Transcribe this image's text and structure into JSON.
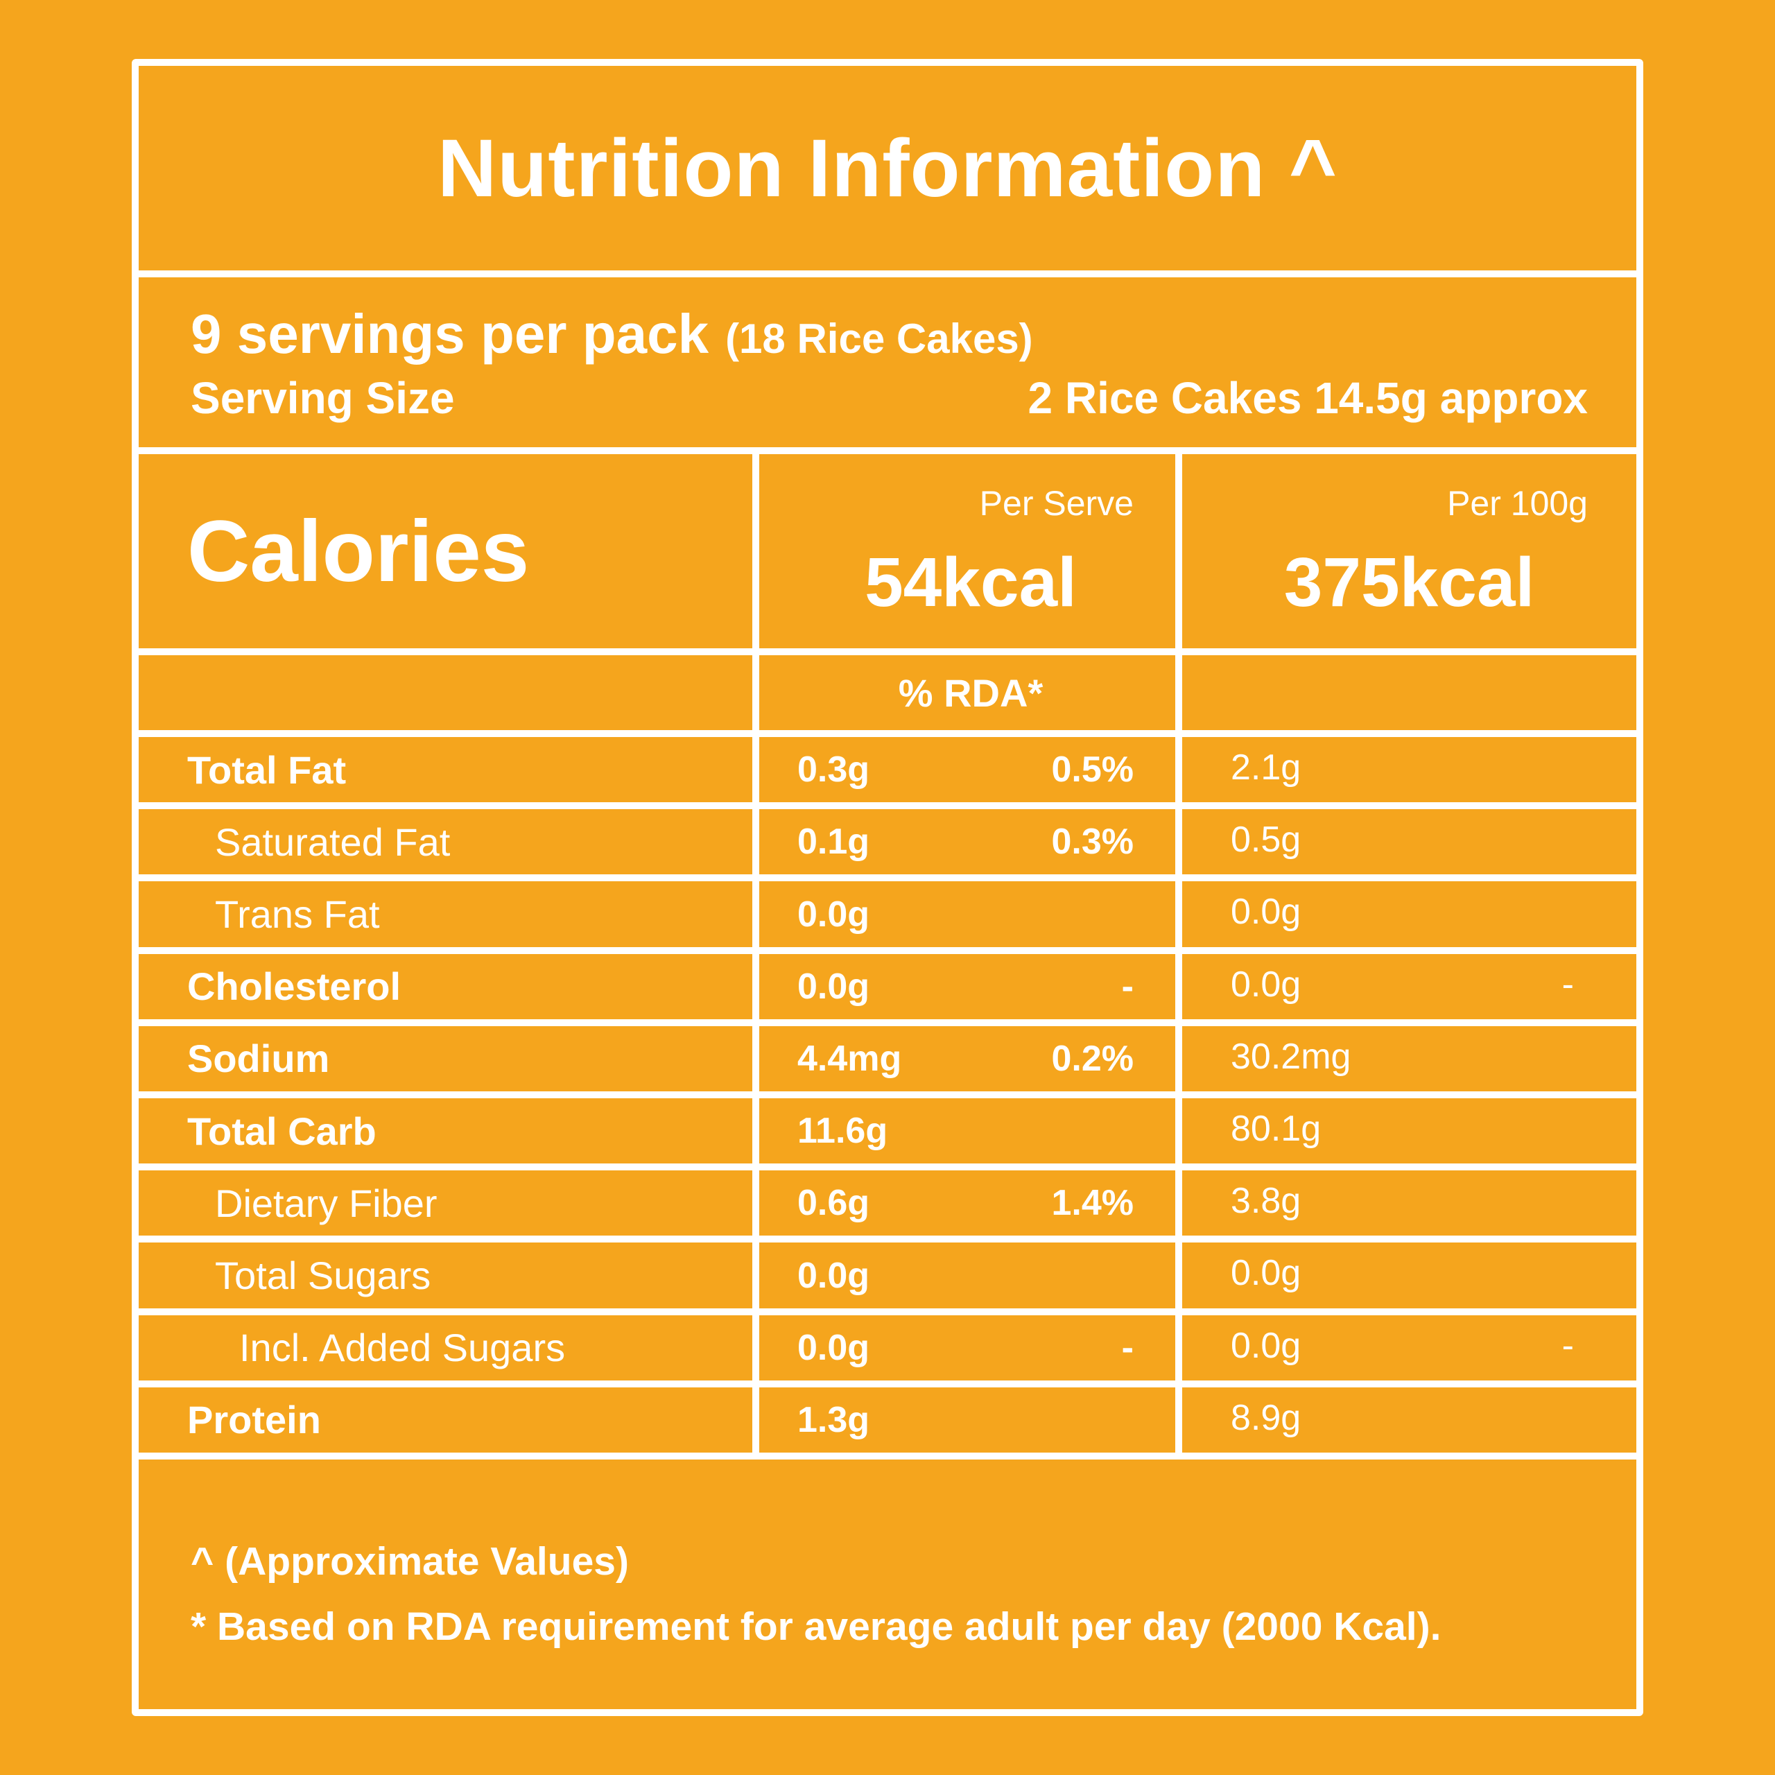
{
  "theme": {
    "background": "#F5A51D",
    "foreground": "#FFFFFF"
  },
  "label": {
    "title": "Nutrition Information ^",
    "servings": {
      "main": "9 servings per pack",
      "detail": "(18 Rice Cakes)",
      "serving_size_label": "Serving Size",
      "serving_size_value": "2 Rice Cakes 14.5g approx"
    },
    "columns": {
      "per_serve": "Per Serve",
      "per_100g": "Per 100g"
    },
    "calories": {
      "label": "Calories",
      "per_serve": "54kcal",
      "per_100g": "375kcal"
    },
    "rda_header": "% RDA*",
    "rows": [
      {
        "label": "Total Fat",
        "amount": "0.3g",
        "rda": "0.5%",
        "per_100g": "2.1g",
        "per_100g_extra": ""
      },
      {
        "label": "Saturated Fat",
        "amount": "0.1g",
        "rda": "0.3%",
        "per_100g": "0.5g",
        "per_100g_extra": ""
      },
      {
        "label": "Trans Fat",
        "amount": "0.0g",
        "rda": "",
        "per_100g": "0.0g",
        "per_100g_extra": ""
      },
      {
        "label": "Cholesterol",
        "amount": "0.0g",
        "rda": "-",
        "per_100g": "0.0g",
        "per_100g_extra": "-"
      },
      {
        "label": "Sodium",
        "amount": "4.4mg",
        "rda": "0.2%",
        "per_100g": "30.2mg",
        "per_100g_extra": ""
      },
      {
        "label": "Total Carb",
        "amount": "11.6g",
        "rda": "",
        "per_100g": "80.1g",
        "per_100g_extra": ""
      },
      {
        "label": "Dietary Fiber",
        "amount": "0.6g",
        "rda": "1.4%",
        "per_100g": "3.8g",
        "per_100g_extra": ""
      },
      {
        "label": "Total Sugars",
        "amount": "0.0g",
        "rda": "",
        "per_100g": "0.0g",
        "per_100g_extra": ""
      },
      {
        "label": "Incl. Added Sugars",
        "amount": "0.0g",
        "rda": "-",
        "per_100g": "0.0g",
        "per_100g_extra": "-"
      },
      {
        "label": "Protein",
        "amount": "1.3g",
        "rda": "",
        "per_100g": "8.9g",
        "per_100g_extra": ""
      }
    ],
    "footnotes": {
      "approx": "^ (Approximate Values)",
      "rda": "* Based on RDA requirement for average adult per day (2000 Kcal)."
    }
  }
}
